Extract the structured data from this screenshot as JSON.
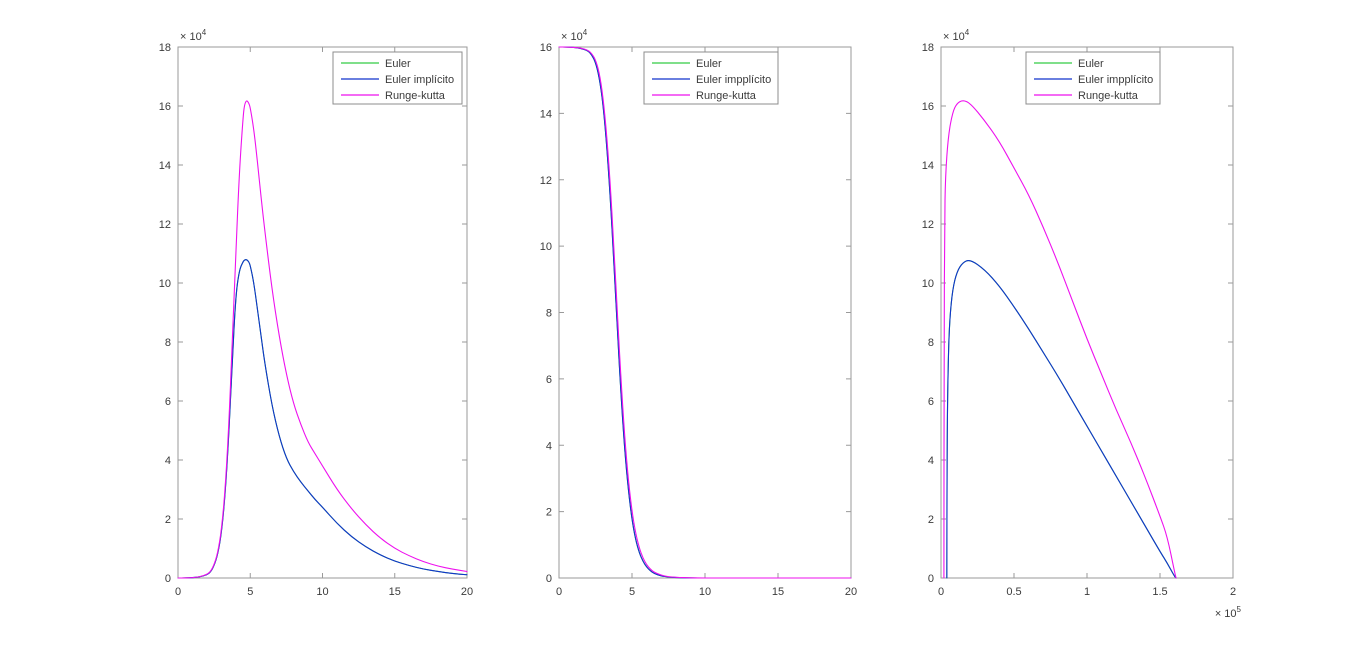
{
  "figure": {
    "background": "#ffffff",
    "description": "MATLAB figure with three line subplots comparing ODE integration methods"
  },
  "style": {
    "axis_color": "#9a9a9a",
    "tick_label_color": "#3b3b3b",
    "legend_border_color": "#8c8c8c",
    "legend_background": "#ffffff"
  },
  "chart_data": [
    {
      "type": "line",
      "title": "",
      "xlabel": "",
      "ylabel": "",
      "xlim": [
        0,
        20
      ],
      "ylim": [
        0,
        18
      ],
      "x_scale": 1,
      "y_scale": 10000,
      "y_exponent": "4",
      "x_exponent": null,
      "xticks": [
        0,
        5,
        10,
        15,
        20
      ],
      "xtick_labels": [
        "0",
        "5",
        "10",
        "15",
        "20"
      ],
      "yticks": [
        0,
        2,
        4,
        6,
        8,
        10,
        12,
        14,
        16,
        18
      ],
      "ytick_labels": [
        "0",
        "2",
        "4",
        "6",
        "8",
        "10",
        "12",
        "14",
        "16",
        "18"
      ],
      "grid": false,
      "legend": {
        "position": "northeast",
        "labels": [
          "Euler",
          "Euler implícito",
          "Runge-kutta"
        ]
      },
      "series": [
        {
          "name": "Euler",
          "color": "#33cc44",
          "x": [
            0,
            0.5,
            1,
            1.5,
            2,
            2.25,
            2.5,
            2.75,
            3,
            3.25,
            3.5,
            3.75,
            4,
            4.25,
            4.5,
            4.6,
            4.75,
            4.9,
            5,
            5.25,
            5.5,
            5.75,
            6,
            6.5,
            7,
            7.5,
            8,
            8.5,
            9,
            9.5,
            10,
            11,
            12,
            13,
            14,
            15,
            16,
            17,
            18,
            19,
            20
          ],
          "y": [
            0,
            0,
            0.01,
            0.035,
            0.11,
            0.2,
            0.42,
            0.8,
            1.5,
            2.75,
            4.7,
            7.3,
            9.6,
            10.45,
            10.72,
            10.78,
            10.8,
            10.72,
            10.6,
            10.0,
            9.1,
            8.2,
            7.3,
            5.85,
            4.8,
            4.05,
            3.6,
            3.25,
            2.95,
            2.65,
            2.4,
            1.85,
            1.4,
            1.05,
            0.78,
            0.57,
            0.42,
            0.3,
            0.22,
            0.15,
            0.11
          ]
        },
        {
          "name": "Euler implícito",
          "color": "#1133cc",
          "x": [
            0,
            0.5,
            1,
            1.5,
            2,
            2.25,
            2.5,
            2.75,
            3,
            3.25,
            3.5,
            3.75,
            4,
            4.25,
            4.5,
            4.6,
            4.75,
            4.9,
            5,
            5.25,
            5.5,
            5.75,
            6,
            6.5,
            7,
            7.5,
            8,
            8.5,
            9,
            9.5,
            10,
            11,
            12,
            13,
            14,
            15,
            16,
            17,
            18,
            19,
            20
          ],
          "y": [
            0,
            0,
            0.01,
            0.035,
            0.11,
            0.2,
            0.42,
            0.8,
            1.5,
            2.75,
            4.7,
            7.3,
            9.6,
            10.45,
            10.72,
            10.78,
            10.8,
            10.72,
            10.6,
            10.0,
            9.1,
            8.2,
            7.3,
            5.85,
            4.8,
            4.05,
            3.6,
            3.25,
            2.95,
            2.65,
            2.4,
            1.85,
            1.4,
            1.05,
            0.78,
            0.57,
            0.42,
            0.3,
            0.22,
            0.15,
            0.11
          ]
        },
        {
          "name": "Runge-kutta",
          "color": "#ee11ee",
          "x": [
            0,
            0.5,
            1,
            1.5,
            2,
            2.25,
            2.5,
            2.75,
            3,
            3.25,
            3.5,
            3.75,
            4,
            4.25,
            4.5,
            4.6,
            4.75,
            4.9,
            5,
            5.25,
            5.5,
            5.75,
            6,
            6.5,
            7,
            7.5,
            8,
            8.5,
            9,
            9.5,
            10,
            11,
            12,
            13,
            14,
            15,
            16,
            17,
            18,
            19,
            20
          ],
          "y": [
            0,
            0,
            0.01,
            0.04,
            0.12,
            0.22,
            0.45,
            0.85,
            1.6,
            2.9,
            5.0,
            7.9,
            11.0,
            13.8,
            15.6,
            16.05,
            16.2,
            16.1,
            15.95,
            15.2,
            14.1,
            12.9,
            11.8,
            9.8,
            8.2,
            6.9,
            5.9,
            5.2,
            4.6,
            4.2,
            3.8,
            3.0,
            2.35,
            1.8,
            1.35,
            1.0,
            0.75,
            0.55,
            0.4,
            0.3,
            0.22
          ]
        }
      ]
    },
    {
      "type": "line",
      "title": "",
      "xlabel": "",
      "ylabel": "",
      "xlim": [
        0,
        20
      ],
      "ylim": [
        0,
        16
      ],
      "x_scale": 1,
      "y_scale": 10000,
      "y_exponent": "4",
      "x_exponent": null,
      "xticks": [
        0,
        5,
        10,
        15,
        20
      ],
      "xtick_labels": [
        "0",
        "5",
        "10",
        "15",
        "20"
      ],
      "yticks": [
        0,
        2,
        4,
        6,
        8,
        10,
        12,
        14,
        16
      ],
      "ytick_labels": [
        "0",
        "2",
        "4",
        "6",
        "8",
        "10",
        "12",
        "14",
        "16"
      ],
      "grid": false,
      "legend": {
        "position": "north",
        "labels": [
          "Euler",
          "Euler impplícito",
          "Runge-kutta"
        ]
      },
      "series": [
        {
          "name": "Euler",
          "color": "#33cc44",
          "x": [
            0,
            0.5,
            1,
            1.5,
            2,
            2.25,
            2.5,
            2.75,
            3,
            3.25,
            3.5,
            3.75,
            4,
            4.25,
            4.5,
            4.75,
            5,
            5.25,
            5.5,
            5.75,
            6,
            6.25,
            6.5,
            7,
            7.5,
            8,
            9,
            10,
            12,
            14,
            16,
            18,
            20
          ],
          "y": [
            16,
            16,
            15.99,
            15.96,
            15.88,
            15.76,
            15.54,
            15.1,
            14.35,
            13.15,
            11.55,
            9.6,
            7.45,
            5.5,
            3.85,
            2.65,
            1.75,
            1.15,
            0.76,
            0.5,
            0.33,
            0.22,
            0.14,
            0.06,
            0.03,
            0.01,
            0,
            0,
            0,
            0,
            0,
            0,
            0
          ]
        },
        {
          "name": "Euler impplícito",
          "color": "#1133cc",
          "x": [
            0,
            0.5,
            1,
            1.5,
            2,
            2.25,
            2.5,
            2.75,
            3,
            3.25,
            3.5,
            3.75,
            4,
            4.25,
            4.5,
            4.75,
            5,
            5.25,
            5.5,
            5.75,
            6,
            6.25,
            6.5,
            7,
            7.5,
            8,
            9,
            10,
            12,
            14,
            16,
            18,
            20
          ],
          "y": [
            16,
            16,
            15.99,
            15.96,
            15.88,
            15.76,
            15.54,
            15.1,
            14.35,
            13.15,
            11.55,
            9.6,
            7.45,
            5.5,
            3.85,
            2.65,
            1.75,
            1.15,
            0.76,
            0.5,
            0.33,
            0.22,
            0.14,
            0.06,
            0.03,
            0.01,
            0,
            0,
            0,
            0,
            0,
            0,
            0
          ]
        },
        {
          "name": "Runge-kutta",
          "color": "#ee11ee",
          "x": [
            0,
            0.5,
            1,
            1.5,
            2,
            2.25,
            2.5,
            2.75,
            3,
            3.25,
            3.5,
            3.75,
            4,
            4.25,
            4.5,
            4.75,
            5,
            5.25,
            5.5,
            5.75,
            6,
            6.25,
            6.5,
            7,
            7.5,
            8,
            9,
            10,
            12,
            14,
            16,
            18,
            20
          ],
          "y": [
            16,
            16,
            15.99,
            15.97,
            15.9,
            15.8,
            15.62,
            15.25,
            14.55,
            13.45,
            11.95,
            10.05,
            7.95,
            5.95,
            4.25,
            2.95,
            2.0,
            1.35,
            0.9,
            0.6,
            0.4,
            0.27,
            0.18,
            0.08,
            0.04,
            0.02,
            0.005,
            0,
            0,
            0,
            0,
            0,
            0
          ]
        }
      ]
    },
    {
      "type": "line",
      "title": "",
      "xlabel": "",
      "ylabel": "",
      "xlim": [
        0,
        2
      ],
      "ylim": [
        0,
        18
      ],
      "x_scale": 100000,
      "y_scale": 10000,
      "y_exponent": "4",
      "x_exponent": "5",
      "xticks": [
        0,
        0.5,
        1,
        1.5,
        2
      ],
      "xtick_labels": [
        "0",
        "0.5",
        "1",
        "1.5",
        "2"
      ],
      "yticks": [
        0,
        2,
        4,
        6,
        8,
        10,
        12,
        14,
        16,
        18
      ],
      "ytick_labels": [
        "0",
        "2",
        "4",
        "6",
        "8",
        "10",
        "12",
        "14",
        "16",
        "18"
      ],
      "grid": false,
      "legend": {
        "position": "north",
        "labels": [
          "Euler",
          "Euler impplícito",
          "Runge-kutta"
        ]
      },
      "series": [
        {
          "name": "Euler",
          "color": "#33cc44",
          "x": [
            0.04,
            0.042,
            0.05,
            0.06,
            0.08,
            0.11,
            0.15,
            0.2,
            0.3,
            0.4,
            0.5,
            0.6,
            0.7,
            0.8,
            0.9,
            1.0,
            1.1,
            1.2,
            1.3,
            1.4,
            1.5,
            1.55,
            1.6,
            1.61
          ],
          "y": [
            0,
            5,
            7.5,
            8.8,
            9.8,
            10.4,
            10.7,
            10.8,
            10.45,
            9.9,
            9.2,
            8.45,
            7.65,
            6.85,
            6.0,
            5.15,
            4.3,
            3.45,
            2.6,
            1.75,
            0.9,
            0.5,
            0.05,
            0
          ]
        },
        {
          "name": "Euler impplícito",
          "color": "#1133cc",
          "x": [
            0.04,
            0.042,
            0.05,
            0.06,
            0.08,
            0.11,
            0.15,
            0.2,
            0.3,
            0.4,
            0.5,
            0.6,
            0.7,
            0.8,
            0.9,
            1.0,
            1.1,
            1.2,
            1.3,
            1.4,
            1.5,
            1.55,
            1.6,
            1.61
          ],
          "y": [
            0,
            5,
            7.5,
            8.8,
            9.8,
            10.4,
            10.7,
            10.8,
            10.45,
            9.9,
            9.2,
            8.45,
            7.65,
            6.85,
            6.0,
            5.15,
            4.3,
            3.45,
            2.6,
            1.75,
            0.9,
            0.5,
            0.05,
            0
          ]
        },
        {
          "name": "Runge-kutta",
          "color": "#ee11ee",
          "x": [
            0.02,
            0.021,
            0.025,
            0.03,
            0.05,
            0.08,
            0.11,
            0.15,
            0.2,
            0.3,
            0.4,
            0.5,
            0.6,
            0.7,
            0.8,
            0.9,
            1.0,
            1.1,
            1.2,
            1.3,
            1.4,
            1.5,
            1.55,
            1.6,
            1.61
          ],
          "y": [
            0,
            8,
            12,
            13.6,
            15.0,
            15.8,
            16.1,
            16.2,
            16.1,
            15.5,
            14.8,
            13.9,
            13.0,
            11.9,
            10.7,
            9.4,
            8.1,
            6.9,
            5.7,
            4.6,
            3.4,
            2.1,
            1.4,
            0.2,
            0
          ]
        }
      ]
    }
  ]
}
